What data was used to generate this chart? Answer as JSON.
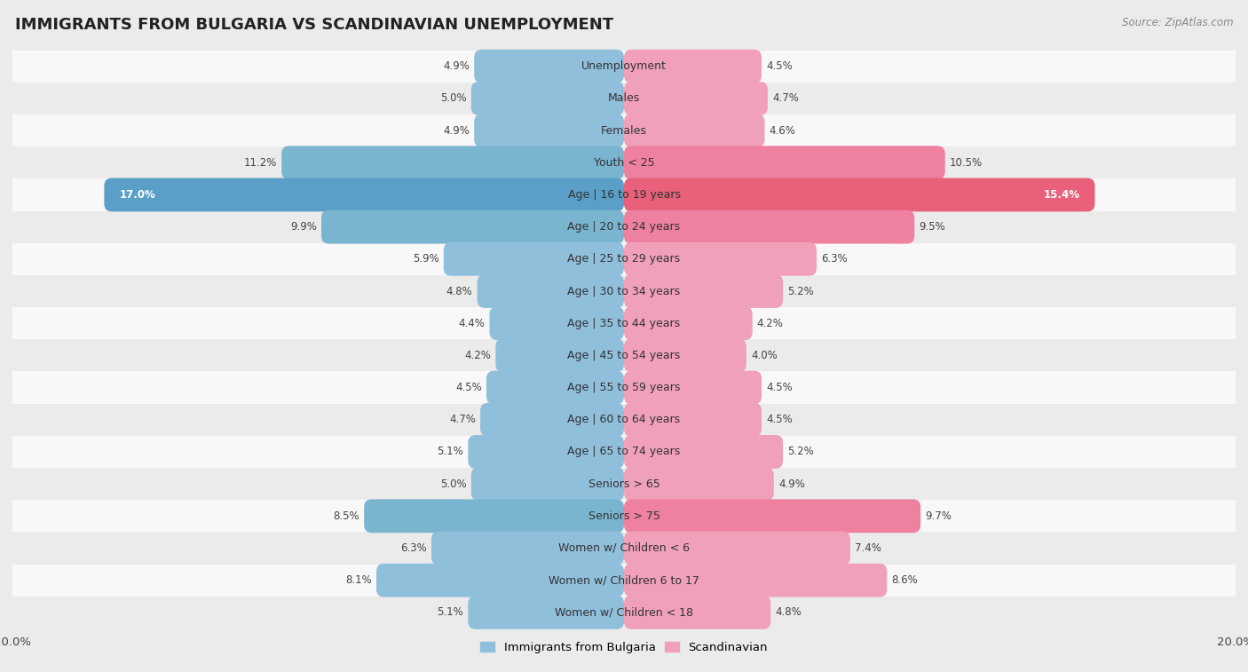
{
  "title": "IMMIGRANTS FROM BULGARIA VS SCANDINAVIAN UNEMPLOYMENT",
  "source": "Source: ZipAtlas.com",
  "categories": [
    "Unemployment",
    "Males",
    "Females",
    "Youth < 25",
    "Age | 16 to 19 years",
    "Age | 20 to 24 years",
    "Age | 25 to 29 years",
    "Age | 30 to 34 years",
    "Age | 35 to 44 years",
    "Age | 45 to 54 years",
    "Age | 55 to 59 years",
    "Age | 60 to 64 years",
    "Age | 65 to 74 years",
    "Seniors > 65",
    "Seniors > 75",
    "Women w/ Children < 6",
    "Women w/ Children 6 to 17",
    "Women w/ Children < 18"
  ],
  "bulgaria_values": [
    4.9,
    5.0,
    4.9,
    11.2,
    17.0,
    9.9,
    5.9,
    4.8,
    4.4,
    4.2,
    4.5,
    4.7,
    5.1,
    5.0,
    8.5,
    6.3,
    8.1,
    5.1
  ],
  "scandinavian_values": [
    4.5,
    4.7,
    4.6,
    10.5,
    15.4,
    9.5,
    6.3,
    5.2,
    4.2,
    4.0,
    4.5,
    4.5,
    5.2,
    4.9,
    9.7,
    7.4,
    8.6,
    4.8
  ],
  "bulgaria_color": "#90bfdc",
  "scandinavian_color": "#f0a0b8",
  "bulgaria_dark_color": "#5a9fc8",
  "scandinavian_dark_color": "#e8607a",
  "xlim": 20.0,
  "bg_color": "#ebebeb",
  "row_bg_even": "#f8f8f8",
  "row_bg_odd": "#ebebeb",
  "title_fontsize": 13,
  "label_fontsize": 9,
  "value_fontsize": 8.5,
  "legend_fontsize": 9.5
}
